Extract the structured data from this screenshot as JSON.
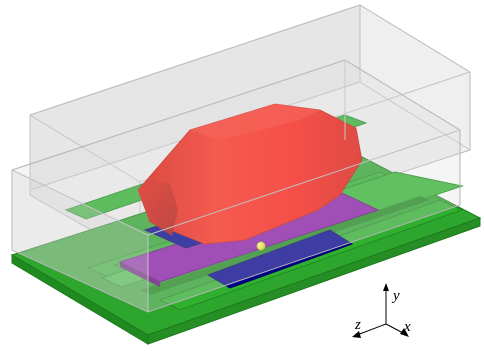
{
  "viewport": {
    "background": "#ffffff"
  },
  "colors": {
    "substrate": "#2ea62e",
    "substrate_edge": "#1c7a1c",
    "trace": "#35b535",
    "trace_dark": "#1f8a1f",
    "dielectric": "#8a1aa8",
    "dielectric_dark": "#5e0f75",
    "pad": "#00008e",
    "pad_edge": "#000066",
    "blob": "#ff1a10",
    "blob_dark": "#b8120a",
    "marker": "#f2f200",
    "enclosure_fill": "#d8d8d8",
    "enclosure_edge": "#b0b0b0"
  },
  "objects": {
    "enclosure": "translucent-enclosure-box",
    "substrate": "green-substrate-board",
    "traces": "green-conductor-traces",
    "dielectric": "purple-dielectric-layer",
    "pads": "blue-contact-pads",
    "blob": "red-ellipsoid-body",
    "marker": "yellow-point-marker"
  },
  "axes": {
    "x_label": "x",
    "y_label": "y",
    "z_label": "z"
  }
}
